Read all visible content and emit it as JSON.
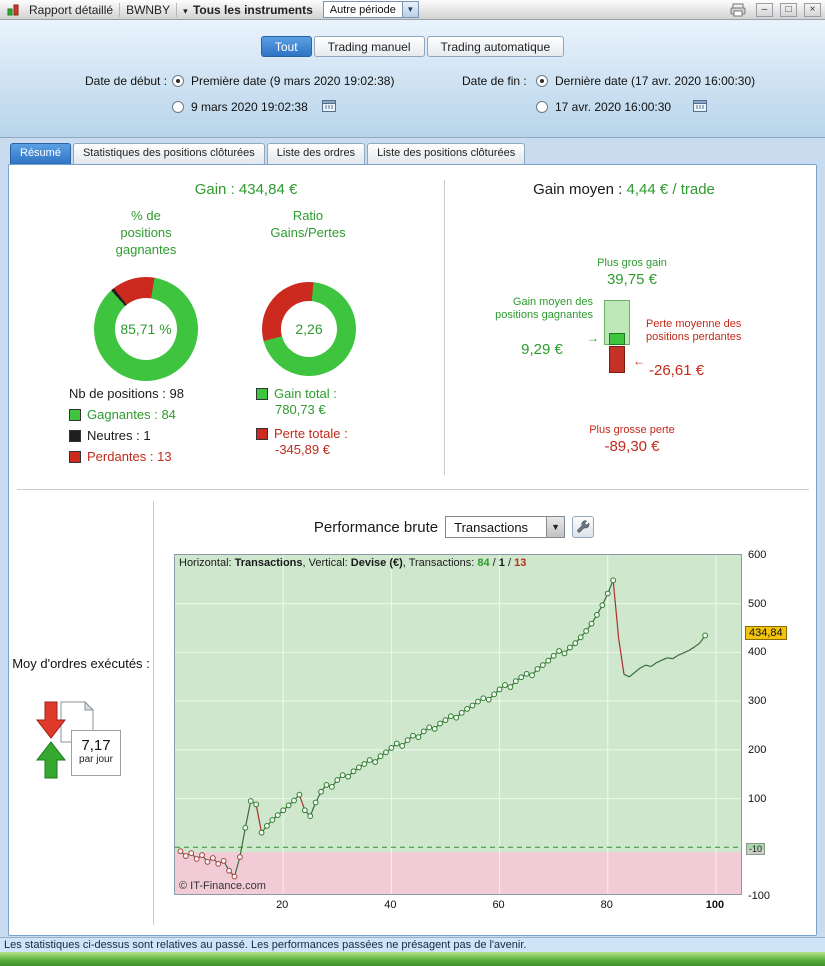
{
  "titlebar": {
    "title": "Rapport détaillé",
    "account": "BWNBY",
    "caret": "▾",
    "instruments": "Tous les instruments",
    "period": "Autre période",
    "combo_caret": "▼",
    "minimize": "–",
    "maximize": "□",
    "close": "×"
  },
  "filters": {
    "modes": [
      {
        "label": "Tout"
      },
      {
        "label": "Trading manuel"
      },
      {
        "label": "Trading automatique"
      }
    ],
    "start": {
      "label": "Date de début :",
      "first": "Première date (9 mars 2020 19:02:38)",
      "custom": "9 mars 2020 19:02:38"
    },
    "end": {
      "label": "Date de fin :",
      "last": "Dernière date (17 avr. 2020 16:00:30)",
      "custom": "17 avr. 2020 16:00:30"
    }
  },
  "tabs": [
    {
      "label": "Résumé"
    },
    {
      "label": "Statistiques des positions clôturées"
    },
    {
      "label": "Liste des ordres"
    },
    {
      "label": "Liste des positions clôturées"
    }
  ],
  "summary": {
    "gain_label": "Gain :",
    "gain_value": "434,84 €",
    "win_title": "% de positions gagnantes",
    "ratio_title": "Ratio Gains/Pertes",
    "donut_win": {
      "value": "85,71 %",
      "start_deg": 318,
      "segments": [
        {
          "name": "neutres",
          "color": "#1f1f1f",
          "pct": 1.02
        },
        {
          "name": "perdantes",
          "color": "#cc2a1e",
          "pct": 13.27
        },
        {
          "name": "gagnantes",
          "color": "#3ec43e",
          "pct": 85.71
        }
      ]
    },
    "donut_ratio": {
      "value": "2,26",
      "start_deg": 255,
      "segments": [
        {
          "name": "pertes",
          "color": "#cc2a1e",
          "pct": 30.7
        },
        {
          "name": "gains",
          "color": "#3ec43e",
          "pct": 69.3
        }
      ]
    },
    "nb_label": "Nb de positions :",
    "nb_value": "98",
    "legend": [
      {
        "label": "Gagnantes :",
        "value": "84",
        "color": "#3ec43e"
      },
      {
        "label": "Neutres :",
        "value": "1",
        "color": "#1f1f1f"
      },
      {
        "label": "Perdantes :",
        "value": "13",
        "color": "#cc2a1e"
      }
    ],
    "gain_total_label": "Gain total :",
    "gain_total_value": "780,73 €",
    "perte_totale_label": "Perte totale :",
    "perte_totale_value": "-345,89 €",
    "avg_label": "Gain moyen :",
    "avg_value": "4,44 € / trade",
    "dist": {
      "max_gain_label": "Plus gros gain",
      "max_gain_value": "39,75 €",
      "avg_win_label": "Gain moyen des positions gagnantes",
      "avg_win_value": "9,29 €",
      "arrow_right": "→",
      "arrow_left": "←",
      "avg_loss_label": "Perte moyenne des positions perdantes",
      "avg_loss_value": "-26,61 €",
      "max_loss_label": "Plus grosse perte",
      "max_loss_value": "-89,30 €"
    }
  },
  "performance": {
    "title": "Performance brute",
    "series": "Transactions",
    "combo_caret": "▼",
    "avg_orders_label": "Moy d'ordres exécutés :",
    "avg_orders_value": "7,17",
    "avg_orders_unit": "par jour",
    "watermark": "© IT-Finance.com",
    "legend": {
      "h_label": "Horizontal: ",
      "h_value": "Transactions",
      "sep1": ", Vertical: ",
      "v_value": "Devise (€)",
      "sep2": ", Transactions: ",
      "wins": "84",
      "slash1": " / ",
      "neutral": "1",
      "slash2": " / ",
      "losses": "13"
    },
    "last_tag": "434,84",
    "split_tag": "-10"
  },
  "chart_data": {
    "type": "line",
    "title": "Performance brute",
    "xlabel": "Transactions",
    "ylabel": "Devise (€)",
    "xlim": [
      0,
      105
    ],
    "ylim": [
      -100,
      600
    ],
    "x_ticks": [
      20,
      40,
      60,
      80,
      100
    ],
    "y_ticks": [
      600,
      500,
      400,
      300,
      200,
      100,
      -100
    ],
    "zero_line": 0,
    "zone_split": -10,
    "last_value": 434.84,
    "x_start": 1,
    "values": [
      -8,
      -18,
      -12,
      -24,
      -16,
      -30,
      -22,
      -34,
      -28,
      -48,
      -60,
      -20,
      40,
      95,
      88,
      30,
      44,
      56,
      66,
      76,
      86,
      96,
      108,
      76,
      64,
      92,
      114,
      128,
      124,
      138,
      148,
      145,
      156,
      164,
      171,
      179,
      175,
      187,
      195,
      204,
      213,
      208,
      220,
      229,
      226,
      238,
      246,
      243,
      254,
      261,
      269,
      266,
      276,
      284,
      291,
      299,
      306,
      303,
      314,
      324,
      333,
      329,
      341,
      349,
      356,
      353,
      366,
      374,
      383,
      393,
      403,
      398,
      410,
      419,
      431,
      444,
      459,
      477,
      497,
      521,
      548,
      430,
      355,
      350,
      359,
      368,
      374,
      371,
      379,
      384,
      389,
      387,
      394,
      399,
      404,
      411,
      419,
      434.84
    ]
  },
  "statusbar": "Les statistiques ci-dessus sont relatives au passé. Les performances passées ne présagent pas de l'avenir."
}
